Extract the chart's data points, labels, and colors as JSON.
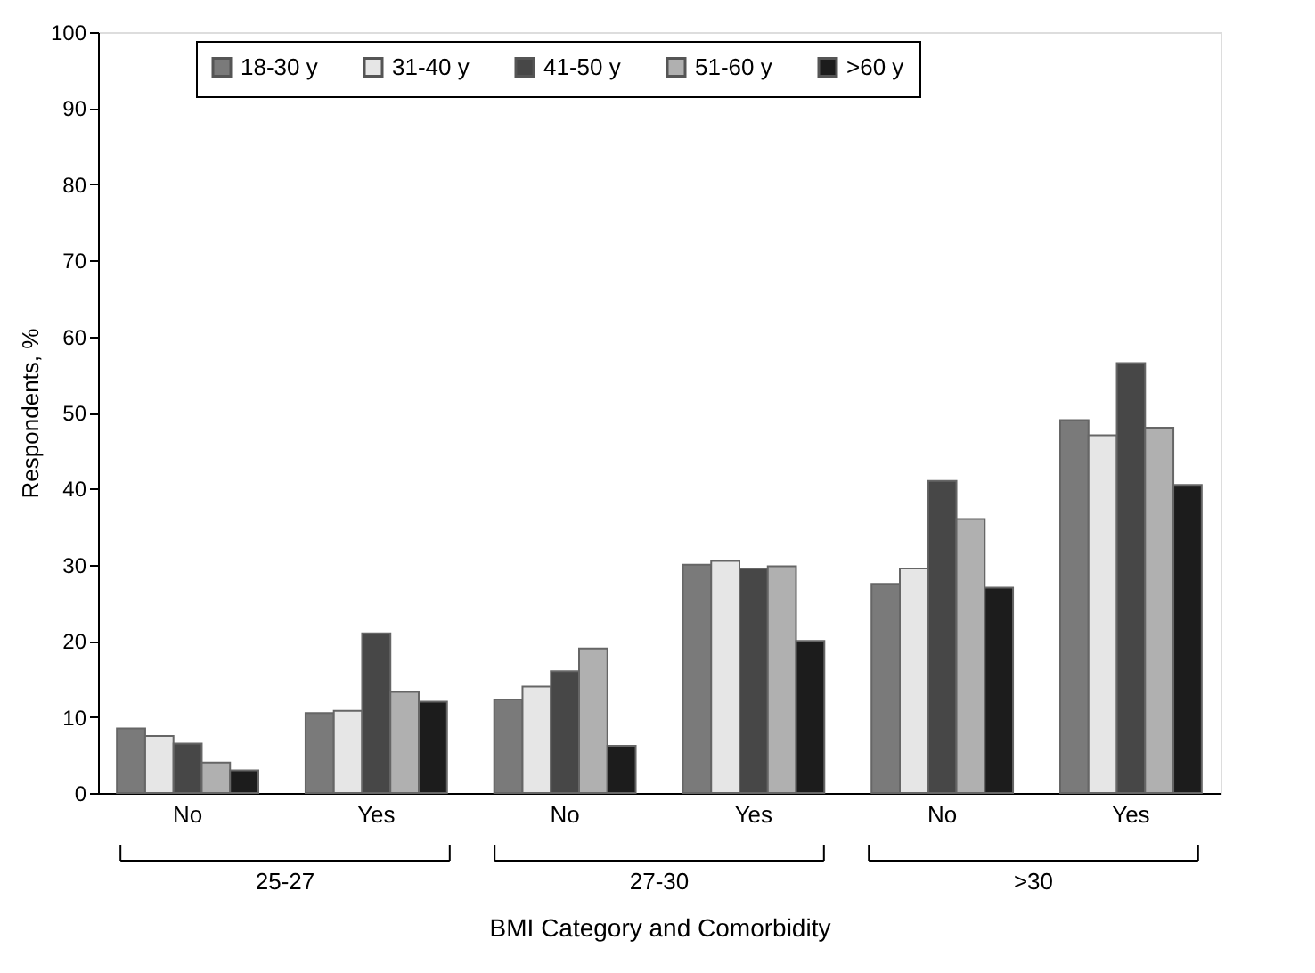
{
  "chart_data": {
    "type": "bar",
    "categories": [
      "No",
      "Yes",
      "No",
      "Yes",
      "No",
      "Yes"
    ],
    "series": [
      {
        "name": "18-30 y",
        "color": "#7a7a7a",
        "values": [
          8.5,
          10.5,
          12.3,
          30,
          27.5,
          49
        ]
      },
      {
        "name": "31-40 y",
        "color": "#e6e6e6",
        "values": [
          7.5,
          10.8,
          14,
          30.5,
          29.5,
          47
        ]
      },
      {
        "name": "41-50 y",
        "color": "#474747",
        "values": [
          6.5,
          21,
          16,
          29.5,
          41,
          56.5
        ]
      },
      {
        "name": "51-60 y",
        "color": "#b0b0b0",
        "values": [
          4,
          13.3,
          19,
          29.8,
          36,
          48
        ]
      },
      {
        "name": ">60 y",
        "color": "#1c1c1c",
        "values": [
          3,
          12,
          6.2,
          20,
          27,
          40.5
        ]
      }
    ],
    "xlabel": "BMI Category and Comorbidity",
    "ylabel": "Respondents, %",
    "ylim": [
      0,
      100
    ],
    "yticks": [
      0,
      10,
      20,
      30,
      40,
      50,
      60,
      70,
      80,
      90,
      100
    ],
    "annotations": [
      "25-27",
      "27-30",
      ">30"
    ],
    "legend": "top",
    "grid": false
  }
}
